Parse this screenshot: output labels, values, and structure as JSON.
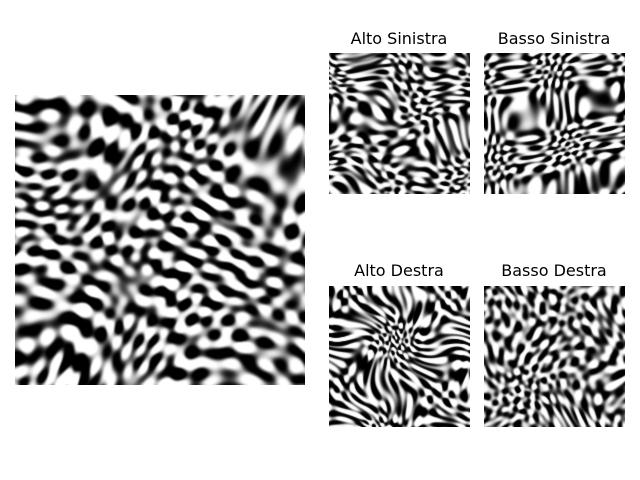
{
  "panels": {
    "main": {
      "title": "",
      "seed": 7,
      "image": "grayscale-wavy-texture"
    },
    "tiles": [
      {
        "title": "Alto Sinistra",
        "seed": 11,
        "image": "grayscale-wavy-texture"
      },
      {
        "title": "Basso Sinistra",
        "seed": 23,
        "image": "grayscale-wavy-texture"
      },
      {
        "title": "Alto Destra",
        "seed": 37,
        "image": "grayscale-wavy-texture"
      },
      {
        "title": "Basso Destra",
        "seed": 53,
        "image": "grayscale-wavy-texture"
      }
    ]
  }
}
